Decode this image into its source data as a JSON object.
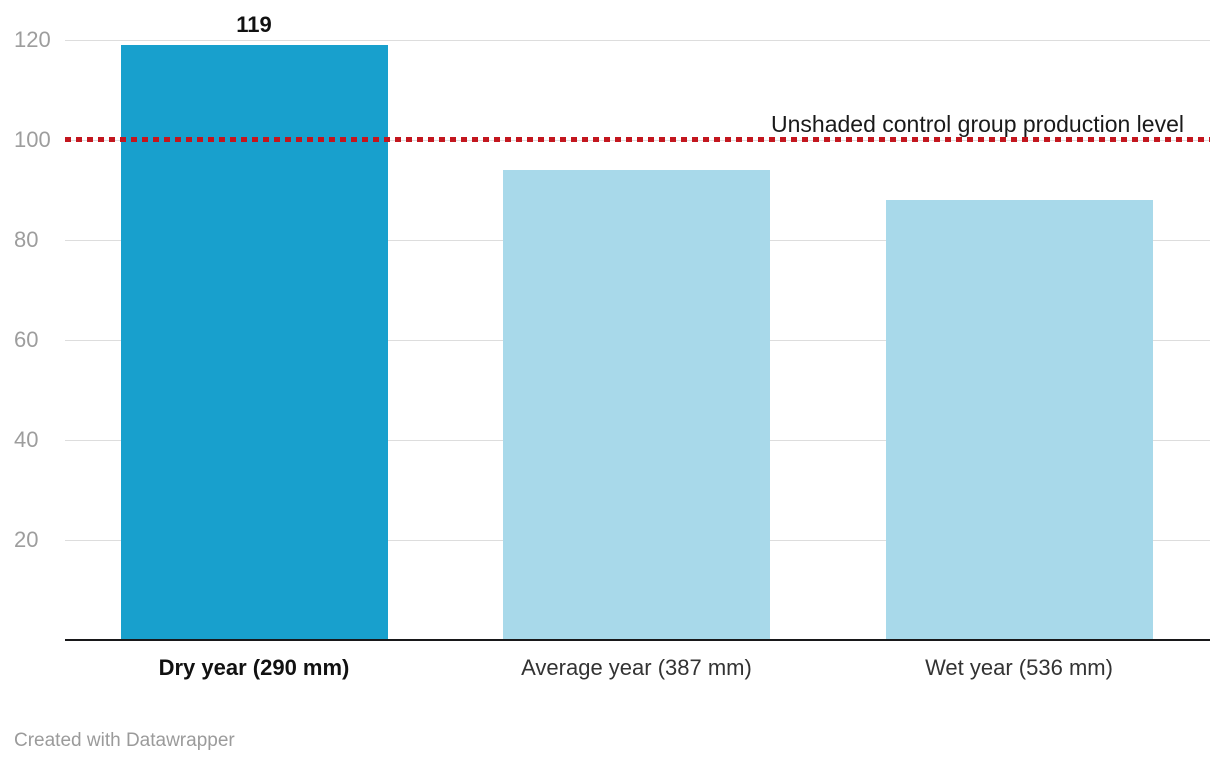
{
  "chart_data": {
    "type": "bar",
    "categories": [
      "Dry year (290 mm)",
      "Average year (387 mm)",
      "Wet year (536 mm)"
    ],
    "values": [
      119,
      94,
      88
    ],
    "value_labels": [
      "119",
      "",
      ""
    ],
    "bar_colors": [
      "#18a0cd",
      "#a8d9ea",
      "#a8d9ea"
    ],
    "emphasis_category_index": 0,
    "title": "",
    "xlabel": "",
    "ylabel": "",
    "ylim": [
      0,
      128
    ],
    "yticks": [
      20,
      40,
      60,
      80,
      100,
      120
    ],
    "grid": "horizontal",
    "reference_line": {
      "value": 100,
      "label": "Unshaded control group production level",
      "color": "#c3161e",
      "style": "dotted"
    }
  },
  "footer": {
    "credit": "Created with Datawrapper"
  },
  "colors": {
    "grid": "#dddddd",
    "axis": "#18181a",
    "tick_text": "#9d9d9d",
    "emphasis_bar": "#18a0cd",
    "regular_bar": "#a8d9ea",
    "reference": "#c3161e"
  }
}
